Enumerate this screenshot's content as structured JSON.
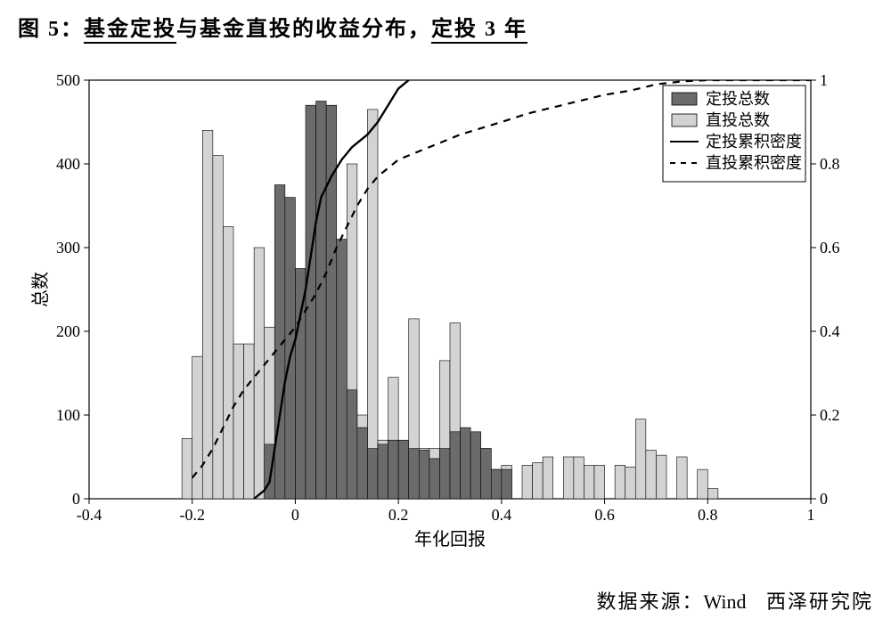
{
  "title": {
    "prefix": "图 5：",
    "underline1": "基金定投",
    "mid1": "与基金直投的收益分布，",
    "underline2": "定投 3 年"
  },
  "chart": {
    "type": "histogram+line",
    "plot_bg": "#ffffff",
    "axis_color": "#000000",
    "grid": false,
    "xlim": [
      -0.4,
      1.0
    ],
    "xticks": [
      -0.4,
      -0.2,
      0,
      0.2,
      0.4,
      0.6,
      0.8,
      1.0
    ],
    "ylim_left": [
      0,
      500
    ],
    "yticks_left": [
      0,
      100,
      200,
      300,
      400,
      500
    ],
    "ylim_right": [
      0,
      1
    ],
    "yticks_right": [
      0,
      0.2,
      0.4,
      0.6,
      0.8,
      1.0
    ],
    "xlabel": "年化回报",
    "ylabel_left": "总数",
    "bar_width_data": 0.02,
    "colors": {
      "series_dark_fill": "#6b6b6b",
      "series_light_fill": "#d3d3d3",
      "bar_edge": "#000000",
      "line_solid": "#000000",
      "line_dash": "#000000",
      "tick_label": "#000000"
    },
    "legend": {
      "items": [
        {
          "kind": "swatch",
          "fill": "#6b6b6b",
          "label": "定投总数"
        },
        {
          "kind": "swatch",
          "fill": "#d3d3d3",
          "label": "直投总数"
        },
        {
          "kind": "line",
          "dash": "none",
          "label": "定投累积密度"
        },
        {
          "kind": "line",
          "dash": "6,6",
          "label": "直投累积密度"
        }
      ]
    },
    "bin_centers": [
      -0.21,
      -0.19,
      -0.17,
      -0.15,
      -0.13,
      -0.11,
      -0.09,
      -0.07,
      -0.05,
      -0.03,
      -0.01,
      0.01,
      0.03,
      0.05,
      0.07,
      0.09,
      0.11,
      0.13,
      0.15,
      0.17,
      0.19,
      0.21,
      0.23,
      0.25,
      0.27,
      0.29,
      0.31,
      0.33,
      0.35,
      0.37,
      0.39,
      0.41,
      0.43,
      0.45,
      0.47,
      0.49,
      0.51,
      0.53,
      0.55,
      0.57,
      0.59,
      0.61,
      0.63,
      0.65,
      0.67,
      0.69,
      0.71,
      0.73,
      0.75,
      0.77,
      0.79,
      0.81
    ],
    "series_light_values": [
      72,
      170,
      440,
      410,
      325,
      185,
      185,
      300,
      205,
      210,
      250,
      255,
      250,
      295,
      460,
      165,
      400,
      100,
      465,
      70,
      145,
      65,
      215,
      60,
      60,
      165,
      210,
      28,
      55,
      60,
      35,
      40,
      0,
      40,
      43,
      50,
      0,
      50,
      50,
      40,
      40,
      0,
      40,
      38,
      95,
      58,
      52,
      0,
      50,
      0,
      35,
      12
    ],
    "series_dark_values": [
      0,
      0,
      0,
      0,
      0,
      0,
      0,
      0,
      65,
      375,
      360,
      275,
      470,
      475,
      470,
      310,
      130,
      85,
      60,
      65,
      70,
      70,
      60,
      58,
      48,
      60,
      80,
      85,
      80,
      60,
      35,
      35,
      0,
      0,
      0,
      0,
      0,
      0,
      0,
      0,
      0,
      0,
      0,
      0,
      0,
      0,
      0,
      0,
      0,
      0,
      0,
      0
    ],
    "line_solid_points": [
      [
        -0.08,
        0.0
      ],
      [
        -0.06,
        0.02
      ],
      [
        -0.05,
        0.04
      ],
      [
        -0.04,
        0.12
      ],
      [
        -0.03,
        0.2
      ],
      [
        -0.02,
        0.28
      ],
      [
        -0.01,
        0.34
      ],
      [
        0.0,
        0.38
      ],
      [
        0.01,
        0.44
      ],
      [
        0.02,
        0.5
      ],
      [
        0.03,
        0.58
      ],
      [
        0.04,
        0.66
      ],
      [
        0.05,
        0.72
      ],
      [
        0.07,
        0.77
      ],
      [
        0.09,
        0.81
      ],
      [
        0.11,
        0.84
      ],
      [
        0.13,
        0.86
      ],
      [
        0.14,
        0.87
      ],
      [
        0.16,
        0.9
      ],
      [
        0.18,
        0.94
      ],
      [
        0.2,
        0.98
      ],
      [
        0.22,
        1.02
      ]
    ],
    "line_dash_points": [
      [
        -0.2,
        0.05
      ],
      [
        -0.18,
        0.08
      ],
      [
        -0.16,
        0.12
      ],
      [
        -0.14,
        0.17
      ],
      [
        -0.12,
        0.22
      ],
      [
        -0.1,
        0.26
      ],
      [
        -0.08,
        0.29
      ],
      [
        -0.06,
        0.32
      ],
      [
        -0.04,
        0.35
      ],
      [
        -0.02,
        0.38
      ],
      [
        0.0,
        0.41
      ],
      [
        0.02,
        0.45
      ],
      [
        0.04,
        0.49
      ],
      [
        0.06,
        0.54
      ],
      [
        0.08,
        0.6
      ],
      [
        0.1,
        0.65
      ],
      [
        0.12,
        0.7
      ],
      [
        0.14,
        0.74
      ],
      [
        0.16,
        0.77
      ],
      [
        0.18,
        0.79
      ],
      [
        0.2,
        0.81
      ],
      [
        0.24,
        0.83
      ],
      [
        0.28,
        0.85
      ],
      [
        0.32,
        0.87
      ],
      [
        0.36,
        0.885
      ],
      [
        0.4,
        0.9
      ],
      [
        0.45,
        0.92
      ],
      [
        0.5,
        0.935
      ],
      [
        0.55,
        0.95
      ],
      [
        0.6,
        0.965
      ],
      [
        0.65,
        0.975
      ],
      [
        0.7,
        0.99
      ],
      [
        0.75,
        0.997
      ],
      [
        0.8,
        1.0
      ],
      [
        0.9,
        1.0
      ],
      [
        1.0,
        1.0
      ]
    ]
  },
  "source": {
    "prefix": "数据来源：",
    "wind": "Wind",
    "tail": "西泽研究院"
  }
}
